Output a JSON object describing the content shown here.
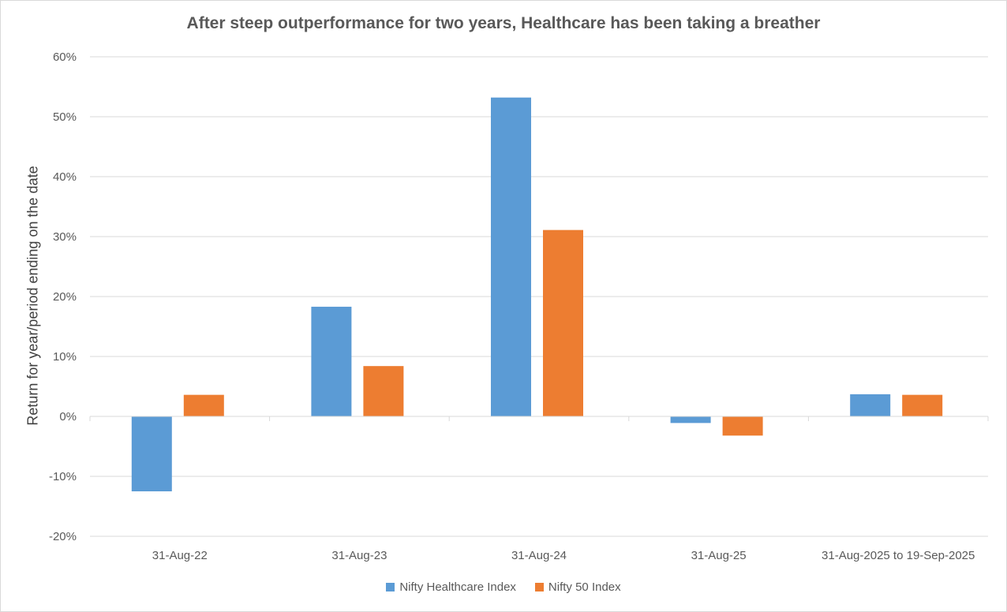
{
  "chart_data": {
    "type": "bar",
    "title": "After steep outperformance for two years, Healthcare has been taking a breather",
    "xlabel": "",
    "ylabel": "Return for year/period ending on the date",
    "categories": [
      "31-Aug-22",
      "31-Aug-23",
      "31-Aug-24",
      "31-Aug-25",
      "31-Aug-2025 to 19-Sep-2025"
    ],
    "ylim": [
      -20,
      60
    ],
    "yticks": [
      -20,
      -10,
      0,
      10,
      20,
      30,
      40,
      50,
      60
    ],
    "ytick_labels": [
      "-20%",
      "-10%",
      "0%",
      "10%",
      "20%",
      "30%",
      "40%",
      "50%",
      "60%"
    ],
    "grid": true,
    "legend_position": "bottom",
    "series": [
      {
        "name": "Nifty Healthcare Index",
        "color": "#5b9bd5",
        "values": [
          -12.5,
          18.3,
          53.2,
          -1.1,
          3.7
        ]
      },
      {
        "name": "Nifty 50 Index",
        "color": "#ed7d31",
        "values": [
          3.6,
          8.4,
          31.1,
          -3.2,
          3.6
        ]
      }
    ]
  }
}
